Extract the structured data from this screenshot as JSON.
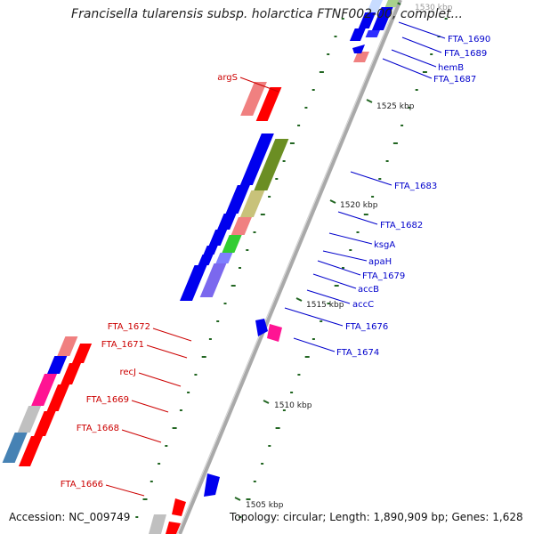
{
  "title": "Francisella tularensis subsp. holarctica FTNF002-00, complet...",
  "footer": {
    "accession": "Accession: NC_009749",
    "topology": "Topology: circular; Length: 1,890,909 bp; Genes: 1,628"
  },
  "ticks": [
    {
      "label": "1505 kbp"
    },
    {
      "label": "1510 kbp"
    },
    {
      "label": "1515 kbp"
    },
    {
      "label": "1520 kbp"
    },
    {
      "label": "1525 kbp"
    },
    {
      "label": "1530 kbp"
    }
  ],
  "colors": {
    "backbone": "#a9a9a9",
    "forward_label": "#0000cc",
    "reverse_label": "#cc0000",
    "tick": "#226622"
  },
  "genes": [
    {
      "name": "FTA_1690",
      "strand": "forward"
    },
    {
      "name": "FTA_1689",
      "strand": "forward"
    },
    {
      "name": "hemB",
      "strand": "forward"
    },
    {
      "name": "FTA_1687",
      "strand": "forward"
    },
    {
      "name": "argS",
      "strand": "reverse"
    },
    {
      "name": "FTA_1683",
      "strand": "forward"
    },
    {
      "name": "FTA_1682",
      "strand": "forward"
    },
    {
      "name": "ksgA",
      "strand": "forward"
    },
    {
      "name": "apaH",
      "strand": "forward"
    },
    {
      "name": "FTA_1679",
      "strand": "forward"
    },
    {
      "name": "accB",
      "strand": "forward"
    },
    {
      "name": "accC",
      "strand": "forward"
    },
    {
      "name": "FTA_1676",
      "strand": "forward"
    },
    {
      "name": "FTA_1674",
      "strand": "forward"
    },
    {
      "name": "FTA_1672",
      "strand": "reverse"
    },
    {
      "name": "FTA_1671",
      "strand": "reverse"
    },
    {
      "name": "recJ",
      "strand": "reverse"
    },
    {
      "name": "FTA_1669",
      "strand": "reverse"
    },
    {
      "name": "FTA_1668",
      "strand": "reverse"
    },
    {
      "name": "FTA_1666",
      "strand": "reverse"
    }
  ]
}
